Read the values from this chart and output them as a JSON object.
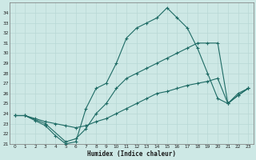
{
  "title": "",
  "xlabel": "Humidex (Indice chaleur)",
  "ylabel": "",
  "background_color": "#cde8e5",
  "grid_color": "#b8d8d5",
  "line_color": "#1e6b65",
  "ylim": [
    21,
    35
  ],
  "xlim": [
    -0.5,
    23.5
  ],
  "yticks": [
    21,
    22,
    23,
    24,
    25,
    26,
    27,
    28,
    29,
    30,
    31,
    32,
    33,
    34
  ],
  "xticks": [
    0,
    1,
    2,
    3,
    4,
    5,
    6,
    7,
    8,
    9,
    10,
    11,
    12,
    13,
    14,
    15,
    16,
    17,
    18,
    19,
    20,
    21,
    22,
    23
  ],
  "series1_x": [
    0,
    1,
    2,
    3,
    4,
    5,
    6,
    7,
    8,
    9,
    10,
    11,
    12,
    13,
    14,
    15,
    16,
    17,
    18,
    19,
    20,
    21,
    22,
    23
  ],
  "series1_y": [
    23.8,
    23.8,
    23.3,
    22.8,
    21.8,
    21.0,
    21.2,
    24.5,
    26.5,
    27.0,
    29.0,
    31.5,
    32.5,
    33.0,
    33.5,
    34.5,
    33.5,
    32.5,
    30.5,
    28.0,
    25.5,
    25.0,
    26.0,
    26.5
  ],
  "series2_x": [
    0,
    1,
    3,
    5,
    6,
    7,
    8,
    9,
    10,
    11,
    12,
    13,
    14,
    15,
    16,
    17,
    18,
    19,
    20,
    21,
    22,
    23
  ],
  "series2_y": [
    23.8,
    23.8,
    23.0,
    21.2,
    21.5,
    22.5,
    24.0,
    25.0,
    26.5,
    27.5,
    28.0,
    28.5,
    29.0,
    29.5,
    30.0,
    30.5,
    31.0,
    31.0,
    31.0,
    25.0,
    25.8,
    26.5
  ],
  "series3_x": [
    0,
    1,
    2,
    3,
    4,
    5,
    6,
    7,
    8,
    9,
    10,
    11,
    12,
    13,
    14,
    15,
    16,
    17,
    18,
    19,
    20,
    21,
    22,
    23
  ],
  "series3_y": [
    23.8,
    23.8,
    23.5,
    23.2,
    23.0,
    22.8,
    22.6,
    22.8,
    23.2,
    23.5,
    24.0,
    24.5,
    25.0,
    25.5,
    26.0,
    26.2,
    26.5,
    26.8,
    27.0,
    27.2,
    27.5,
    25.0,
    25.8,
    26.5
  ]
}
